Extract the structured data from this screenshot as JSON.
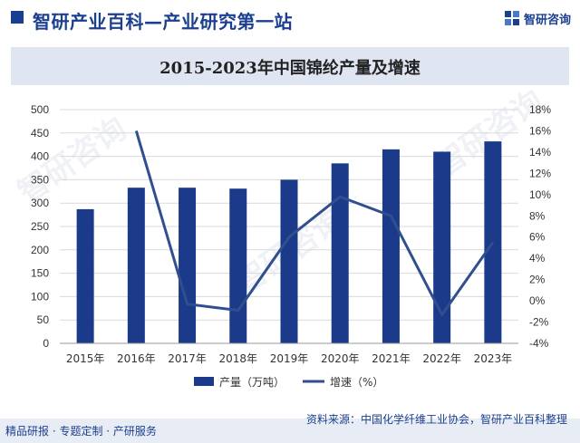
{
  "header": {
    "title": "智研产业百科—产业研究第一站",
    "logo_text": "智研咨询"
  },
  "chart_data": {
    "type": "bar+line",
    "title": "2015-2023年中国锦纶产量及增速",
    "categories": [
      "2015年",
      "2016年",
      "2017年",
      "2018年",
      "2019年",
      "2020年",
      "2021年",
      "2022年",
      "2023年"
    ],
    "series": [
      {
        "name": "产量（万吨）",
        "type": "bar",
        "axis": "left",
        "color": "#1b3a8a",
        "values": [
          287,
          333,
          333,
          331,
          350,
          385,
          415,
          410,
          432
        ]
      },
      {
        "name": "增速（%）",
        "type": "line",
        "axis": "right",
        "color": "#2f4f8f",
        "values": [
          null,
          16.0,
          -0.3,
          -0.9,
          6.0,
          9.8,
          8.0,
          -1.3,
          5.5
        ]
      }
    ],
    "y_left": {
      "ylim": [
        0,
        500
      ],
      "ticks": [
        "0",
        "50",
        "100",
        "150",
        "200",
        "250",
        "300",
        "350",
        "400",
        "450",
        "500"
      ]
    },
    "y_right": {
      "ylim": [
        -4,
        18
      ],
      "ticks": [
        "-4%",
        "-2%",
        "0%",
        "2%",
        "4%",
        "6%",
        "8%",
        "10%",
        "12%",
        "14%",
        "16%",
        "18%"
      ]
    },
    "grid": true,
    "legend_position": "bottom-center"
  },
  "footer": {
    "left": "精品研报 · 专题定制 · 产研服务",
    "source": "资料来源：中国化学纤维工业协会，智研产业百科整理"
  },
  "colors": {
    "brand": "#1b3f8f",
    "bar": "#1b3a8a",
    "line": "#2f4f8f",
    "band": "#dfe6f2"
  }
}
